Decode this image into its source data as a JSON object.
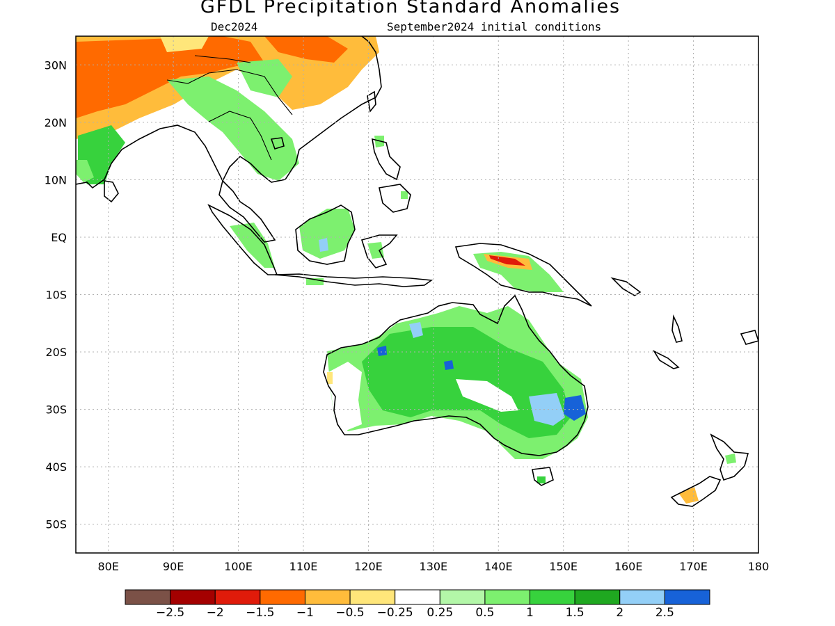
{
  "header": {
    "title": "GFDL Precipitation Standard Anomalies",
    "subtitle_left": "Dec2024",
    "subtitle_right": "September2024 initial conditions"
  },
  "map": {
    "lon_range": [
      75,
      180
    ],
    "lat_range": [
      -55,
      35
    ],
    "lon_ticks": [
      80,
      90,
      100,
      110,
      120,
      130,
      140,
      150,
      160,
      170,
      180
    ],
    "lon_labels": [
      "80E",
      "90E",
      "100E",
      "110E",
      "120E",
      "130E",
      "140E",
      "150E",
      "160E",
      "170E",
      "180"
    ],
    "lat_ticks": [
      30,
      20,
      10,
      0,
      -10,
      -20,
      -30,
      -40,
      -50
    ],
    "lat_labels": [
      "30N",
      "20N",
      "10N",
      "EQ",
      "10S",
      "20S",
      "30S",
      "40S",
      "50S"
    ],
    "grid": "dotted"
  },
  "colorbar": {
    "colors": [
      "#7b5147",
      "#a40000",
      "#e01b0a",
      "#ff6a00",
      "#ffbc3b",
      "#ffe67a",
      "#ffffff",
      "#b3f7a8",
      "#7df06f",
      "#37d23d",
      "#1fa820",
      "#93cff7",
      "#1762d8"
    ],
    "labels": [
      "-2.5",
      "-2",
      "-1.5",
      "-1",
      "-0.5",
      "-0.25",
      "0.25",
      "0.5",
      "1",
      "1.5",
      "2",
      "2.5"
    ]
  }
}
